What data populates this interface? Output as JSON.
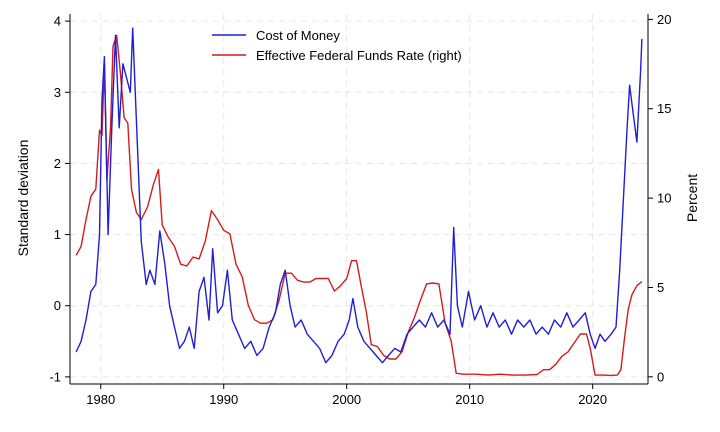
{
  "chart_data": {
    "type": "line",
    "title": "",
    "xlabel": "",
    "ylabel_left": "Standard deviation",
    "ylabel_right": "Percent",
    "xlim": [
      1977.5,
      2024.5
    ],
    "ylim_left": [
      -1.1,
      4.1
    ],
    "ylim_right": [
      -0.4,
      20.3
    ],
    "x_ticks": [
      1980,
      1990,
      2000,
      2010,
      2020
    ],
    "y_ticks_left": [
      -1,
      0,
      1,
      2,
      3,
      4
    ],
    "y_ticks_right": [
      0,
      5,
      10,
      15,
      20
    ],
    "grid": true,
    "legend_position": "top-center",
    "series": [
      {
        "name": "Cost of Money",
        "axis": "left",
        "color": "#1f1fd6",
        "points": [
          [
            1978.0,
            -0.65
          ],
          [
            1978.4,
            -0.5
          ],
          [
            1978.8,
            -0.2
          ],
          [
            1979.2,
            0.2
          ],
          [
            1979.6,
            0.3
          ],
          [
            1979.9,
            1.0
          ],
          [
            1980.1,
            2.9
          ],
          [
            1980.3,
            3.5
          ],
          [
            1980.6,
            1.0
          ],
          [
            1980.9,
            2.5
          ],
          [
            1981.2,
            3.8
          ],
          [
            1981.5,
            2.5
          ],
          [
            1981.8,
            3.4
          ],
          [
            1982.1,
            3.2
          ],
          [
            1982.4,
            3.0
          ],
          [
            1982.6,
            3.9
          ],
          [
            1982.9,
            2.6
          ],
          [
            1983.3,
            0.9
          ],
          [
            1983.7,
            0.3
          ],
          [
            1984.0,
            0.5
          ],
          [
            1984.4,
            0.3
          ],
          [
            1984.8,
            1.05
          ],
          [
            1985.2,
            0.6
          ],
          [
            1985.6,
            0.0
          ],
          [
            1986.0,
            -0.3
          ],
          [
            1986.4,
            -0.6
          ],
          [
            1986.8,
            -0.5
          ],
          [
            1987.2,
            -0.3
          ],
          [
            1987.6,
            -0.6
          ],
          [
            1988.0,
            0.2
          ],
          [
            1988.4,
            0.4
          ],
          [
            1988.8,
            -0.2
          ],
          [
            1989.1,
            0.8
          ],
          [
            1989.5,
            -0.1
          ],
          [
            1989.9,
            0.0
          ],
          [
            1990.3,
            0.5
          ],
          [
            1990.7,
            -0.2
          ],
          [
            1991.2,
            -0.4
          ],
          [
            1991.7,
            -0.6
          ],
          [
            1992.2,
            -0.5
          ],
          [
            1992.7,
            -0.7
          ],
          [
            1993.2,
            -0.6
          ],
          [
            1993.7,
            -0.3
          ],
          [
            1994.2,
            -0.1
          ],
          [
            1994.6,
            0.3
          ],
          [
            1995.0,
            0.5
          ],
          [
            1995.4,
            0.0
          ],
          [
            1995.8,
            -0.3
          ],
          [
            1996.3,
            -0.2
          ],
          [
            1996.8,
            -0.4
          ],
          [
            1997.3,
            -0.5
          ],
          [
            1997.8,
            -0.6
          ],
          [
            1998.3,
            -0.8
          ],
          [
            1998.8,
            -0.7
          ],
          [
            1999.3,
            -0.5
          ],
          [
            1999.8,
            -0.4
          ],
          [
            2000.2,
            -0.2
          ],
          [
            2000.5,
            0.1
          ],
          [
            2000.9,
            -0.3
          ],
          [
            2001.4,
            -0.5
          ],
          [
            2001.9,
            -0.6
          ],
          [
            2002.4,
            -0.7
          ],
          [
            2002.9,
            -0.8
          ],
          [
            2003.4,
            -0.7
          ],
          [
            2003.9,
            -0.6
          ],
          [
            2004.4,
            -0.65
          ],
          [
            2004.9,
            -0.4
          ],
          [
            2005.4,
            -0.3
          ],
          [
            2005.9,
            -0.2
          ],
          [
            2006.4,
            -0.3
          ],
          [
            2006.9,
            -0.1
          ],
          [
            2007.4,
            -0.3
          ],
          [
            2007.9,
            -0.2
          ],
          [
            2008.4,
            -0.4
          ],
          [
            2008.7,
            1.1
          ],
          [
            2009.0,
            0.0
          ],
          [
            2009.4,
            -0.3
          ],
          [
            2009.9,
            0.2
          ],
          [
            2010.4,
            -0.2
          ],
          [
            2010.9,
            0.0
          ],
          [
            2011.4,
            -0.3
          ],
          [
            2011.9,
            -0.1
          ],
          [
            2012.4,
            -0.3
          ],
          [
            2012.9,
            -0.2
          ],
          [
            2013.4,
            -0.4
          ],
          [
            2013.9,
            -0.2
          ],
          [
            2014.4,
            -0.3
          ],
          [
            2014.9,
            -0.2
          ],
          [
            2015.4,
            -0.4
          ],
          [
            2015.9,
            -0.3
          ],
          [
            2016.4,
            -0.4
          ],
          [
            2016.9,
            -0.2
          ],
          [
            2017.4,
            -0.3
          ],
          [
            2017.9,
            -0.1
          ],
          [
            2018.4,
            -0.3
          ],
          [
            2018.9,
            -0.2
          ],
          [
            2019.4,
            -0.1
          ],
          [
            2019.8,
            -0.4
          ],
          [
            2020.2,
            -0.6
          ],
          [
            2020.6,
            -0.4
          ],
          [
            2021.0,
            -0.5
          ],
          [
            2021.5,
            -0.4
          ],
          [
            2021.9,
            -0.3
          ],
          [
            2022.2,
            0.5
          ],
          [
            2022.5,
            1.5
          ],
          [
            2022.8,
            2.5
          ],
          [
            2023.0,
            3.1
          ],
          [
            2023.3,
            2.7
          ],
          [
            2023.6,
            2.3
          ],
          [
            2023.9,
            3.3
          ],
          [
            2024.0,
            3.75
          ]
        ]
      },
      {
        "name": "Effective Federal Funds Rate (right)",
        "axis": "right",
        "color": "#d41c1c",
        "points": [
          [
            1978.0,
            6.8
          ],
          [
            1978.4,
            7.3
          ],
          [
            1978.8,
            8.8
          ],
          [
            1979.2,
            10.1
          ],
          [
            1979.6,
            10.5
          ],
          [
            1979.9,
            13.8
          ],
          [
            1980.1,
            13.5
          ],
          [
            1980.3,
            17.5
          ],
          [
            1980.5,
            11.0
          ],
          [
            1980.8,
            14.0
          ],
          [
            1981.0,
            18.5
          ],
          [
            1981.3,
            19.1
          ],
          [
            1981.6,
            17.0
          ],
          [
            1981.9,
            14.5
          ],
          [
            1982.2,
            14.2
          ],
          [
            1982.5,
            10.5
          ],
          [
            1982.9,
            9.2
          ],
          [
            1983.3,
            8.8
          ],
          [
            1983.8,
            9.5
          ],
          [
            1984.3,
            10.8
          ],
          [
            1984.7,
            11.6
          ],
          [
            1985.0,
            8.5
          ],
          [
            1985.5,
            7.8
          ],
          [
            1986.0,
            7.3
          ],
          [
            1986.5,
            6.3
          ],
          [
            1987.0,
            6.2
          ],
          [
            1987.5,
            6.7
          ],
          [
            1988.0,
            6.6
          ],
          [
            1988.5,
            7.6
          ],
          [
            1989.0,
            9.3
          ],
          [
            1989.5,
            8.8
          ],
          [
            1990.0,
            8.2
          ],
          [
            1990.5,
            8.0
          ],
          [
            1991.0,
            6.3
          ],
          [
            1991.5,
            5.6
          ],
          [
            1992.0,
            4.0
          ],
          [
            1992.5,
            3.2
          ],
          [
            1993.0,
            3.0
          ],
          [
            1993.5,
            3.0
          ],
          [
            1994.0,
            3.2
          ],
          [
            1994.5,
            4.3
          ],
          [
            1995.0,
            5.8
          ],
          [
            1995.5,
            5.8
          ],
          [
            1996.0,
            5.4
          ],
          [
            1996.5,
            5.3
          ],
          [
            1997.0,
            5.3
          ],
          [
            1997.5,
            5.5
          ],
          [
            1998.0,
            5.5
          ],
          [
            1998.5,
            5.5
          ],
          [
            1999.0,
            4.8
          ],
          [
            1999.5,
            5.1
          ],
          [
            2000.0,
            5.5
          ],
          [
            2000.4,
            6.5
          ],
          [
            2000.8,
            6.5
          ],
          [
            2001.2,
            5.0
          ],
          [
            2001.6,
            3.6
          ],
          [
            2002.0,
            1.8
          ],
          [
            2002.5,
            1.7
          ],
          [
            2003.0,
            1.2
          ],
          [
            2003.5,
            1.0
          ],
          [
            2004.0,
            1.0
          ],
          [
            2004.5,
            1.4
          ],
          [
            2005.0,
            2.5
          ],
          [
            2005.5,
            3.3
          ],
          [
            2006.0,
            4.3
          ],
          [
            2006.5,
            5.2
          ],
          [
            2007.0,
            5.25
          ],
          [
            2007.5,
            5.2
          ],
          [
            2008.0,
            3.0
          ],
          [
            2008.5,
            2.0
          ],
          [
            2008.9,
            0.2
          ],
          [
            2009.5,
            0.15
          ],
          [
            2010.5,
            0.15
          ],
          [
            2011.5,
            0.1
          ],
          [
            2012.5,
            0.15
          ],
          [
            2013.5,
            0.1
          ],
          [
            2014.5,
            0.1
          ],
          [
            2015.5,
            0.13
          ],
          [
            2016.0,
            0.4
          ],
          [
            2016.5,
            0.4
          ],
          [
            2017.0,
            0.7
          ],
          [
            2017.5,
            1.15
          ],
          [
            2018.0,
            1.4
          ],
          [
            2018.5,
            1.9
          ],
          [
            2019.0,
            2.4
          ],
          [
            2019.5,
            2.4
          ],
          [
            2019.8,
            1.6
          ],
          [
            2020.2,
            0.1
          ],
          [
            2020.8,
            0.1
          ],
          [
            2021.5,
            0.08
          ],
          [
            2022.0,
            0.1
          ],
          [
            2022.3,
            0.4
          ],
          [
            2022.6,
            2.2
          ],
          [
            2022.9,
            3.8
          ],
          [
            2023.2,
            4.6
          ],
          [
            2023.6,
            5.1
          ],
          [
            2024.0,
            5.33
          ]
        ]
      }
    ]
  }
}
